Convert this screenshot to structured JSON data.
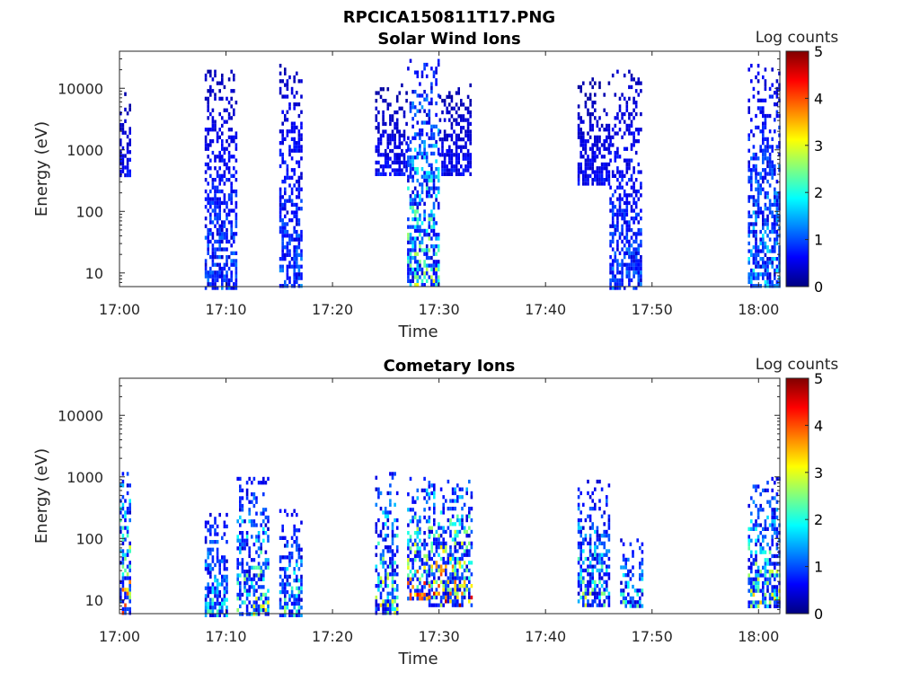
{
  "figure": {
    "title": "RPCICA150811T17.PNG"
  },
  "colormap": [
    "#000080",
    "#0000ff",
    "#0080ff",
    "#00ffff",
    "#80ff80",
    "#ffff00",
    "#ff8000",
    "#ff0000",
    "#800000"
  ],
  "chart_data": [
    {
      "type": "heatmap",
      "title": "Solar Wind Ions",
      "xlabel": "Time",
      "ylabel": "Energy (eV)",
      "xlim": [
        "17:00",
        "18:02"
      ],
      "ylim": [
        6,
        40000
      ],
      "yscale": "log",
      "xticks": [
        "17:00",
        "17:10",
        "17:20",
        "17:30",
        "17:40",
        "17:50",
        "18:00"
      ],
      "yticks": [
        "10",
        "100",
        "1000",
        "10000"
      ],
      "colorbar": {
        "label": "Log counts",
        "range": [
          0,
          5
        ],
        "ticks": [
          "0",
          "1",
          "2",
          "3",
          "4",
          "5"
        ]
      },
      "bursts": [
        {
          "t_start": "17:00",
          "t_end": "17:01",
          "e_min": 400,
          "e_max": 10000,
          "level": 0.6
        },
        {
          "t_start": "17:08",
          "t_end": "17:11",
          "e_min": 6,
          "e_max": 20000,
          "level": 1.0
        },
        {
          "t_start": "17:15",
          "t_end": "17:17",
          "e_min": 6,
          "e_max": 25000,
          "level": 1.0
        },
        {
          "t_start": "17:24",
          "t_end": "17:27",
          "e_min": 400,
          "e_max": 12000,
          "level": 0.6
        },
        {
          "t_start": "17:27",
          "t_end": "17:30",
          "e_min": 6,
          "e_max": 30000,
          "level": 2.3
        },
        {
          "t_start": "17:30",
          "t_end": "17:33",
          "e_min": 400,
          "e_max": 12000,
          "level": 0.6
        },
        {
          "t_start": "17:43",
          "t_end": "17:46",
          "e_min": 300,
          "e_max": 15000,
          "level": 0.6
        },
        {
          "t_start": "17:46",
          "t_end": "17:49",
          "e_min": 6,
          "e_max": 20000,
          "level": 1.0
        },
        {
          "t_start": "17:59",
          "t_end": "18:02",
          "e_min": 6,
          "e_max": 25000,
          "level": 1.5
        }
      ]
    },
    {
      "type": "heatmap",
      "title": "Cometary Ions",
      "xlabel": "Time",
      "ylabel": "Energy (eV)",
      "xlim": [
        "17:00",
        "18:02"
      ],
      "ylim": [
        6,
        40000
      ],
      "yscale": "log",
      "xticks": [
        "17:00",
        "17:10",
        "17:20",
        "17:30",
        "17:40",
        "17:50",
        "18:00"
      ],
      "yticks": [
        "10",
        "100",
        "1000",
        "10000"
      ],
      "colorbar": {
        "label": "Log counts",
        "range": [
          0,
          5
        ],
        "ticks": [
          "0",
          "1",
          "2",
          "3",
          "4",
          "5"
        ]
      },
      "bursts": [
        {
          "t_start": "17:00",
          "t_end": "17:01",
          "e_min": 6,
          "e_max": 1200,
          "level": 3.2
        },
        {
          "t_start": "17:08",
          "t_end": "17:10",
          "e_min": 6,
          "e_max": 300,
          "level": 1.8
        },
        {
          "t_start": "17:11",
          "t_end": "17:14",
          "e_min": 6,
          "e_max": 1000,
          "level": 2.4
        },
        {
          "t_start": "17:15",
          "t_end": "17:17",
          "e_min": 6,
          "e_max": 300,
          "level": 2.0
        },
        {
          "t_start": "17:24",
          "t_end": "17:26",
          "e_min": 6,
          "e_max": 1200,
          "level": 2.6
        },
        {
          "t_start": "17:27",
          "t_end": "17:29",
          "e_min": 10,
          "e_max": 1000,
          "level": 3.5
        },
        {
          "t_start": "17:29",
          "t_end": "17:33",
          "e_min": 8,
          "e_max": 900,
          "level": 3.5
        },
        {
          "t_start": "17:43",
          "t_end": "17:46",
          "e_min": 8,
          "e_max": 900,
          "level": 2.2
        },
        {
          "t_start": "17:47",
          "t_end": "17:49",
          "e_min": 8,
          "e_max": 100,
          "level": 2.0
        },
        {
          "t_start": "17:59",
          "t_end": "18:02",
          "e_min": 8,
          "e_max": 1000,
          "level": 2.5
        }
      ]
    }
  ]
}
